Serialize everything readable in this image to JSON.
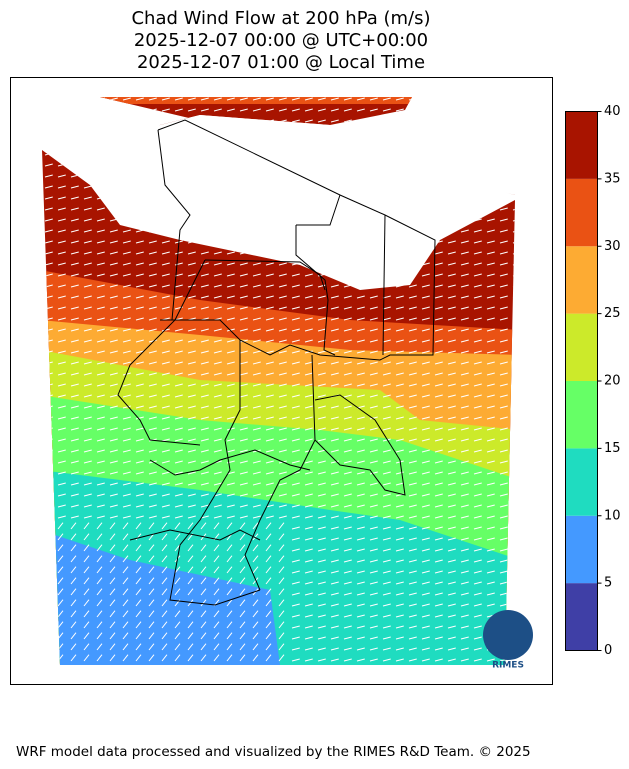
{
  "title": [
    "Chad Wind Flow at 200 hPa (m/s)",
    "2025-12-07 00:00 @ UTC+00:00",
    "2025-12-07 01:00 @ Local Time"
  ],
  "colorbar": {
    "ticks": [
      0,
      5,
      10,
      15,
      20,
      25,
      30,
      35,
      40
    ],
    "colors": [
      "#3f3fa6",
      "#4499ff",
      "#1fdcc0",
      "#66ff66",
      "#ccea2a",
      "#fdab33",
      "#ea5214",
      "#a81400"
    ]
  },
  "logo": "RIMES",
  "footer": "WRF model data processed and visualized by the RIMES R&D Team. © 2025"
}
